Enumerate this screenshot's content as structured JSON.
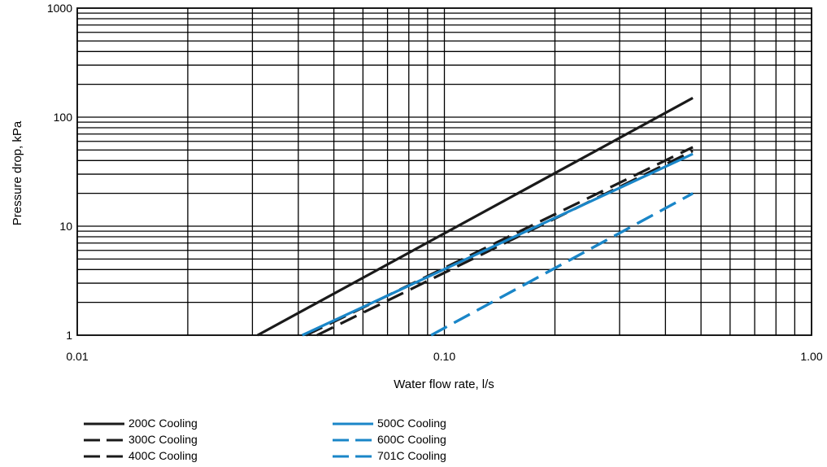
{
  "chart_data": {
    "type": "line",
    "title": "",
    "xlabel": "Water flow rate, l/s",
    "ylabel": "Pressure drop, kPa",
    "xscale": "log",
    "yscale": "log",
    "xlim": [
      0.01,
      1.0
    ],
    "ylim": [
      1,
      1000
    ],
    "grid": true,
    "x_tick_labels": [
      {
        "value": 0.01,
        "label": "0.01"
      },
      {
        "value": 0.1,
        "label": "0.10"
      },
      {
        "value": 1.0,
        "label": "1.00"
      }
    ],
    "y_tick_labels": [
      {
        "value": 1,
        "label": "1"
      },
      {
        "value": 10,
        "label": "10"
      },
      {
        "value": 100,
        "label": "100"
      },
      {
        "value": 1000,
        "label": "1000"
      }
    ],
    "legend_position": "bottom",
    "series": [
      {
        "name": "200C Cooling",
        "color": "#1a1a1a",
        "dash": "solid",
        "points": [
          [
            0.031,
            1.0
          ],
          [
            0.475,
            150
          ]
        ]
      },
      {
        "name": "300C Cooling",
        "color": "#1a1a1a",
        "dash": "dashed",
        "points": [
          [
            0.042,
            1.0
          ],
          [
            0.475,
            53
          ]
        ]
      },
      {
        "name": "400C Cooling",
        "color": "#1a1a1a",
        "dash": "dashed",
        "points": [
          [
            0.045,
            1.0
          ],
          [
            0.475,
            49
          ]
        ]
      },
      {
        "name": "500C Cooling",
        "color": "#1a86c8",
        "dash": "solid",
        "points": [
          [
            0.041,
            1.0
          ],
          [
            0.475,
            46
          ]
        ]
      },
      {
        "name": "600C Cooling",
        "color": "#1a86c8",
        "dash": "dashed",
        "points": [
          [
            0.092,
            1.0
          ],
          [
            0.475,
            20
          ]
        ]
      },
      {
        "name": "701C Cooling",
        "color": "#1a86c8",
        "dash": "dashed",
        "points": [
          [
            0.092,
            1.0
          ],
          [
            0.475,
            20
          ]
        ]
      }
    ]
  }
}
